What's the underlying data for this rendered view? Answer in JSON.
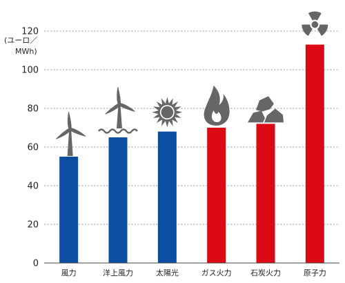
{
  "chart_data": {
    "type": "bar",
    "title": "",
    "ylabel_lines": [
      "(ユーロ／",
      "MWh)"
    ],
    "xlabel": "",
    "ylim": [
      0,
      120
    ],
    "yticks": [
      0,
      20,
      40,
      60,
      80,
      100,
      120
    ],
    "grid": true,
    "categories": [
      "風力",
      "洋上風力",
      "太陽光",
      "ガス火力",
      "石炭火力",
      "原子力"
    ],
    "values": [
      55,
      65,
      68,
      70,
      72,
      113
    ],
    "bar_colors": [
      "#0b4ea2",
      "#0b4ea2",
      "#0b4ea2",
      "#dc0a14",
      "#dc0a14",
      "#dc0a14"
    ],
    "icons": [
      "wind-turbine-icon",
      "offshore-wind-turbine-icon",
      "sun-icon",
      "flame-icon",
      "coal-icon",
      "radiation-icon"
    ],
    "icon_color": "#666666"
  }
}
